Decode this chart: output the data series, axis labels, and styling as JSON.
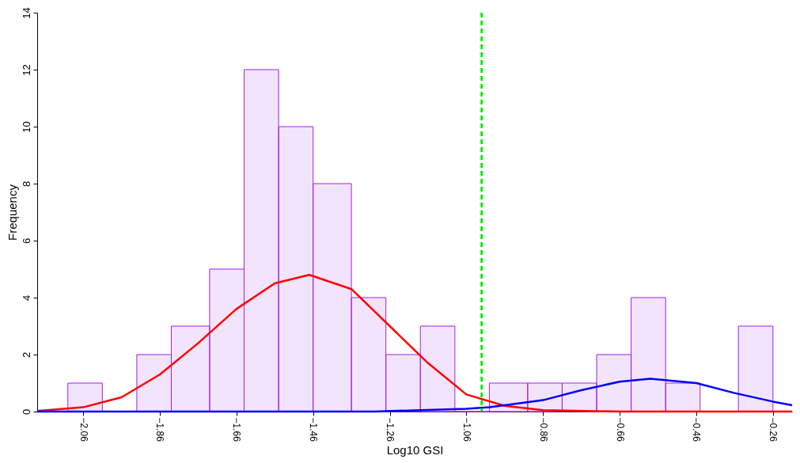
{
  "chart_data": {
    "type": "histogram",
    "xlabel": "Log10 GSI",
    "ylabel": "Frequency",
    "bins": [
      -2.1,
      -2.01,
      -1.92,
      -1.83,
      -1.73,
      -1.64,
      -1.55,
      -1.46,
      -1.36,
      -1.27,
      -1.18,
      -1.09,
      -1.0,
      -0.9,
      -0.81,
      -0.72,
      -0.63,
      -0.54,
      -0.45,
      -0.35,
      -0.26
    ],
    "values": [
      1,
      0,
      2,
      3,
      5,
      12,
      10,
      8,
      4,
      2,
      3,
      0,
      1,
      1,
      1,
      2,
      4,
      1,
      0,
      3
    ],
    "color": "#a020f0",
    "series": [
      {
        "type": "line",
        "color": "#ff0000",
        "x": [
          -2.18,
          -2.06,
          -1.96,
          -1.86,
          -1.76,
          -1.66,
          -1.56,
          -1.47,
          -1.36,
          -1.26,
          -1.16,
          -1.06,
          -0.96,
          -0.86,
          -0.66,
          -0.21
        ],
        "values": [
          0.02,
          0.15,
          0.5,
          1.3,
          2.4,
          3.6,
          4.5,
          4.8,
          4.3,
          3.0,
          1.7,
          0.6,
          0.2,
          0.05,
          0,
          0
        ]
      },
      {
        "type": "line",
        "color": "#0000ff",
        "x": [
          -2.18,
          -1.3,
          -1.06,
          -1.0,
          -0.86,
          -0.76,
          -0.66,
          -0.58,
          -0.46,
          -0.36,
          -0.26,
          -0.21
        ],
        "values": [
          0,
          0,
          0.1,
          0.15,
          0.4,
          0.75,
          1.05,
          1.15,
          1.0,
          0.65,
          0.35,
          0.22
        ]
      }
    ],
    "ref_lines": [
      {
        "axis": "x",
        "value": -1.02,
        "color": "#00ee00",
        "line_style": "dashed"
      }
    ],
    "xlim": [
      -2.18,
      -0.21
    ],
    "xticks": [
      -2.06,
      -1.86,
      -1.66,
      -1.46,
      -1.26,
      -1.06,
      -0.86,
      -0.66,
      -0.46,
      -0.26
    ],
    "ylim": [
      0,
      14
    ],
    "yticks": [
      0,
      2,
      4,
      6,
      8,
      10,
      12,
      14
    ],
    "grid": false
  }
}
